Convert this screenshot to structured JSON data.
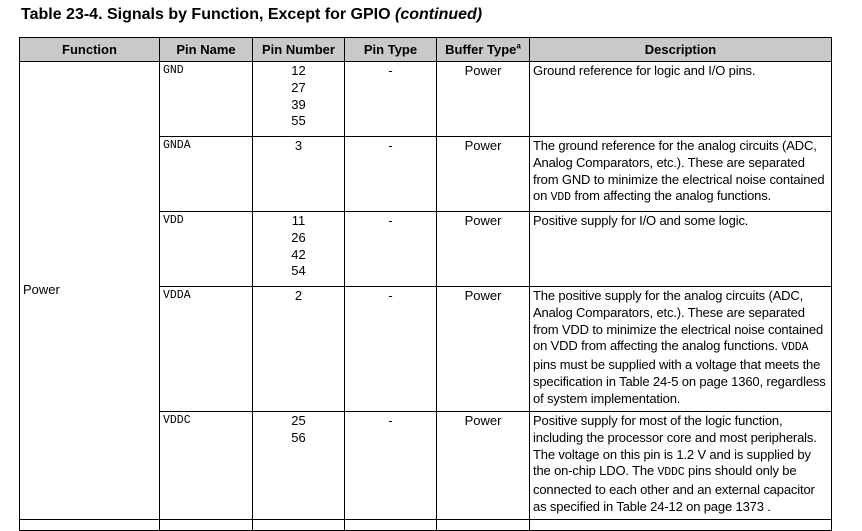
{
  "title": {
    "main": "Table 23-4. Signals by Function, Except for GPIO",
    "suffix": "(continued)"
  },
  "headers": {
    "function": "Function",
    "pin_name": "Pin Name",
    "pin_number": "Pin Number",
    "pin_type": "Pin Type",
    "buffer_type": "Buffer Type",
    "buffer_type_note": "a",
    "description": "Description"
  },
  "function_group": "Power",
  "rows": [
    {
      "pin_name": "GND",
      "pin_numbers": [
        "12",
        "27",
        "39",
        "55"
      ],
      "pin_type": "-",
      "buffer_type": "Power",
      "description": [
        "Ground reference for logic and I/O pins."
      ]
    },
    {
      "pin_name": "GNDA",
      "pin_numbers": [
        "3"
      ],
      "pin_type": "-",
      "buffer_type": "Power",
      "description": [
        "The ground reference for the analog circuits (ADC, Analog Comparators, etc.). These are separated from GND to minimize the electrical noise contained on ",
        "VDD",
        " from affecting the analog functions."
      ]
    },
    {
      "pin_name": "VDD",
      "pin_numbers": [
        "11",
        "26",
        "42",
        "54"
      ],
      "pin_type": "-",
      "buffer_type": "Power",
      "description": [
        "Positive supply for I/O and some logic."
      ]
    },
    {
      "pin_name": "VDDA",
      "pin_numbers": [
        "2"
      ],
      "pin_type": "-",
      "buffer_type": "Power",
      "description": [
        "The positive supply for the analog circuits (ADC, Analog Comparators, etc.). These are separated from VDD to minimize the electrical noise contained on VDD from affecting the analog functions. ",
        "VDDA",
        " pins must be supplied with a voltage that meets the specification in Table 24-5 on page 1360, regardless of system implementation."
      ]
    },
    {
      "pin_name": "VDDC",
      "pin_numbers": [
        "25",
        "56"
      ],
      "pin_type": "-",
      "buffer_type": "Power",
      "description": [
        "Positive supply for most of the logic function, including the processor core and most peripherals. The voltage on this pin is 1.2 V and is supplied by the on-chip LDO. The ",
        "VDDC",
        " pins should only be connected to each other and an external capacitor as specified in Table 24-12 on page 1373 ."
      ]
    }
  ]
}
